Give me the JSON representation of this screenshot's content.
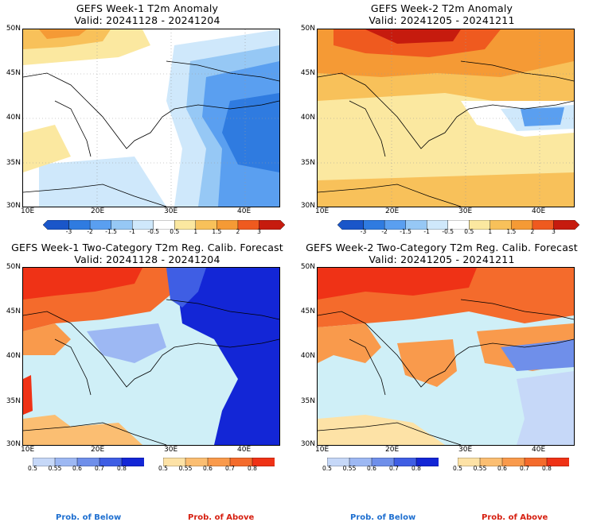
{
  "panels": [
    {
      "title1": "GEFS Week-1 T2m Anomaly",
      "title2": "Valid: 20241128 - 20241204"
    },
    {
      "title1": "GEFS Week-2 T2m Anomaly",
      "title2": "Valid: 20241205 - 20241211"
    },
    {
      "title1": "GEFS Week-1 Two-Category T2m Reg. Calib. Forecast",
      "title2": "Valid: 20241128 - 20241204"
    },
    {
      "title1": "GEFS Week-2 Two-Category T2m Reg. Calib. Forecast",
      "title2": "Valid: 20241205 - 20241211"
    }
  ],
  "axes": {
    "lat_labels": [
      "50N",
      "45N",
      "40N",
      "35N",
      "30N"
    ],
    "lon_labels": [
      "10E",
      "20E",
      "30E",
      "40E"
    ]
  },
  "anomaly_colorbar": {
    "ticks": [
      "-3",
      "-2",
      "-1.5",
      "-1",
      "-0.5",
      "0.5",
      "1",
      "1.5",
      "2",
      "3"
    ],
    "colors": [
      "#1a56c9",
      "#2f7be0",
      "#5a9ff0",
      "#96c8f5",
      "#cfe8fb",
      "#ffffff",
      "#fbe8a0",
      "#f8c15a",
      "#f59a35",
      "#ef5a1f",
      "#c61b0e"
    ]
  },
  "prob_colorbar": {
    "below_ticks": [
      "0.5",
      "0.55",
      "0.6",
      "0.7",
      "0.8"
    ],
    "above_ticks": [
      "0.5",
      "0.55",
      "0.6",
      "0.7",
      "0.8"
    ],
    "below_colors": [
      "#c6d8f8",
      "#9db8f3",
      "#6f8fea",
      "#3f5ee4",
      "#1326d6"
    ],
    "above_colors": [
      "#fde2a6",
      "#fbbe72",
      "#f99a4c",
      "#f46b2c",
      "#ef3216"
    ],
    "below_label": "Prob. of Below",
    "above_label": "Prob. of Above"
  }
}
